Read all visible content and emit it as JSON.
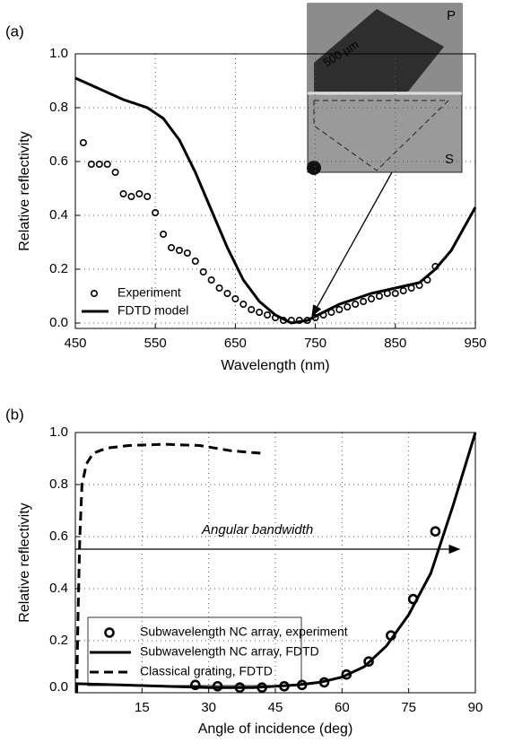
{
  "chart_data": [
    {
      "type": "line",
      "panel_label": "(a)",
      "xlabel": "Wavelength (nm)",
      "ylabel": "Relative reflectivity",
      "xlim": [
        450,
        950
      ],
      "xticks": [
        450,
        550,
        650,
        750,
        850,
        950
      ],
      "ylim": [
        -0.02,
        1
      ],
      "yticks": [
        {
          "value": 0,
          "label": "0.0"
        },
        {
          "value": 0.2,
          "label": "0.2"
        },
        {
          "value": 0.4,
          "label": "0.4"
        },
        {
          "value": 0.6,
          "label": "0.6"
        },
        {
          "value": 0.8,
          "label": "0.8"
        },
        {
          "value": 1,
          "label": "1.0"
        }
      ],
      "grid": true,
      "inset_labels": {
        "top": "P",
        "bottom": "S",
        "scale": "500 µm"
      },
      "series": [
        {
          "name": "Experiment",
          "color": "#000000",
          "style": "markers",
          "x": [
            460,
            470,
            480,
            490,
            500,
            510,
            520,
            530,
            540,
            550,
            560,
            570,
            580,
            590,
            600,
            610,
            620,
            630,
            640,
            650,
            660,
            670,
            680,
            690,
            700,
            710,
            720,
            730,
            740,
            750,
            760,
            770,
            780,
            790,
            800,
            810,
            820,
            830,
            840,
            850,
            860,
            870,
            880,
            890,
            900
          ],
          "values": [
            0.67,
            0.59,
            0.59,
            0.59,
            0.56,
            0.48,
            0.47,
            0.48,
            0.47,
            0.41,
            0.33,
            0.28,
            0.27,
            0.26,
            0.23,
            0.19,
            0.16,
            0.13,
            0.11,
            0.09,
            0.07,
            0.05,
            0.04,
            0.03,
            0.02,
            0.01,
            0.01,
            0.01,
            0.01,
            0.02,
            0.03,
            0.04,
            0.05,
            0.06,
            0.07,
            0.08,
            0.09,
            0.1,
            0.11,
            0.11,
            0.12,
            0.13,
            0.14,
            0.16,
            0.21
          ]
        },
        {
          "name": "FDTD model",
          "color": "#000000",
          "style": "solid",
          "x": [
            450,
            480,
            510,
            540,
            560,
            580,
            600,
            620,
            640,
            660,
            680,
            700,
            720,
            740,
            760,
            780,
            800,
            820,
            850,
            880,
            900,
            920,
            950
          ],
          "values": [
            0.91,
            0.87,
            0.83,
            0.8,
            0.76,
            0.68,
            0.56,
            0.42,
            0.28,
            0.16,
            0.08,
            0.03,
            0.0,
            0.01,
            0.04,
            0.07,
            0.09,
            0.11,
            0.13,
            0.15,
            0.2,
            0.27,
            0.43
          ]
        }
      ]
    },
    {
      "type": "line",
      "panel_label": "(b)",
      "xlabel": "Angle of incidence (deg)",
      "ylabel": "Relative reflectivity",
      "xlim": [
        0,
        90
      ],
      "xticks": [
        15,
        30,
        45,
        60,
        75,
        90
      ],
      "ylim": [
        0,
        1
      ],
      "yticks": [
        {
          "value": 0,
          "label": "0.0"
        },
        {
          "value": 0.2,
          "label": "0.2"
        },
        {
          "value": 0.4,
          "label": "0.4"
        },
        {
          "value": 0.6,
          "label": "0.6"
        },
        {
          "value": 0.8,
          "label": "0.8"
        },
        {
          "value": 1,
          "label": "1.0"
        }
      ],
      "grid": true,
      "annotation": "Angular bandwidth",
      "series": [
        {
          "name": "Subwavelength NC array, experiment",
          "color": "#000000",
          "style": "markers",
          "x": [
            27,
            32,
            37,
            42,
            47,
            51,
            56,
            61,
            66,
            71,
            76,
            81
          ],
          "values": [
            0.03,
            0.025,
            0.02,
            0.02,
            0.025,
            0.03,
            0.04,
            0.07,
            0.12,
            0.22,
            0.36,
            0.62
          ]
        },
        {
          "name": "Subwavelength NC array, FDTD",
          "color": "#000000",
          "style": "solid",
          "x": [
            0,
            10,
            20,
            30,
            40,
            50,
            55,
            60,
            65,
            70,
            75,
            80,
            85,
            90
          ],
          "values": [
            0.035,
            0.03,
            0.025,
            0.02,
            0.02,
            0.03,
            0.04,
            0.06,
            0.1,
            0.18,
            0.3,
            0.46,
            0.72,
            1.0
          ]
        },
        {
          "name": "Classical grating, FDTD",
          "color": "#000000",
          "style": "dashed",
          "x": [
            0.3,
            0.6,
            1,
            1.5,
            2.5,
            4,
            7,
            12,
            20,
            28,
            35,
            42
          ],
          "values": [
            0.0,
            0.3,
            0.6,
            0.8,
            0.88,
            0.92,
            0.94,
            0.95,
            0.955,
            0.95,
            0.93,
            0.92
          ]
        }
      ]
    }
  ]
}
